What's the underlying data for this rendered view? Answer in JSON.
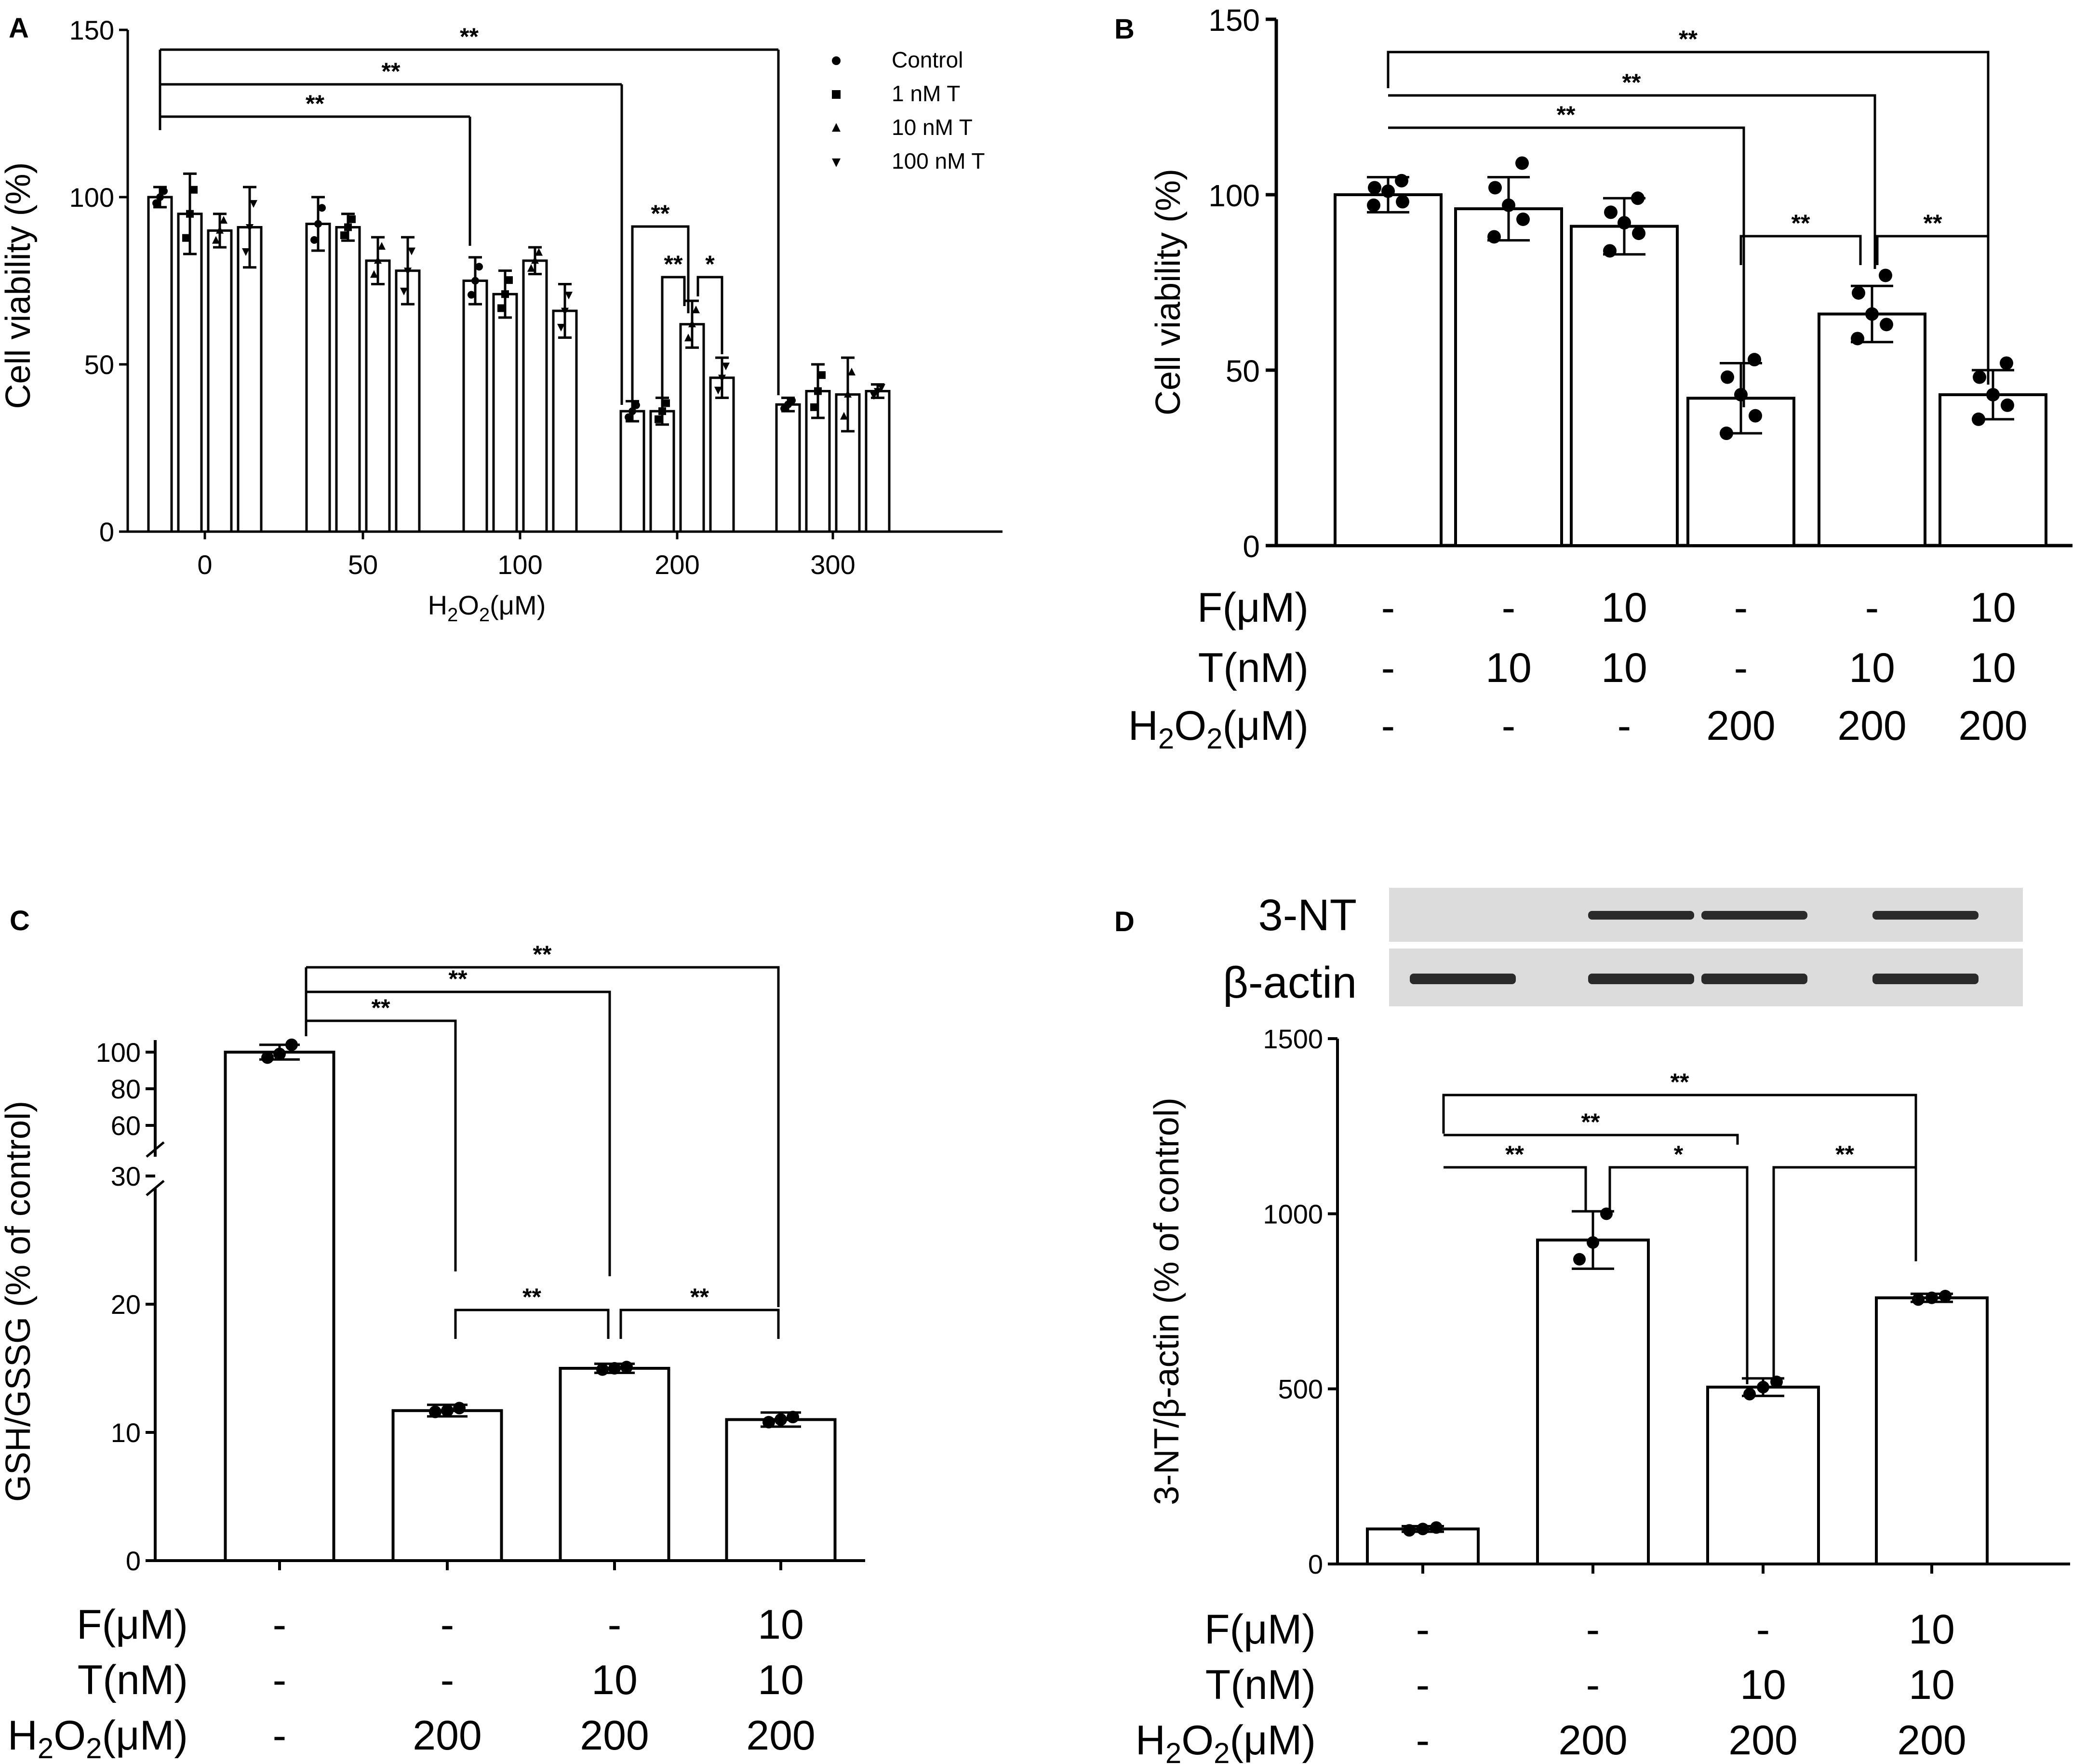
{
  "figure": {
    "panels": [
      "A",
      "B",
      "C",
      "D"
    ],
    "colors": {
      "ink": "#000000",
      "bar_fill": "#ffffff",
      "blot_bg": "#dcdcdc",
      "band": "#2a2a2a"
    }
  },
  "chart_data": [
    {
      "panel": "A",
      "type": "bar",
      "title": "",
      "ylabel": "Cell viability (%)",
      "xlabel_main": "H",
      "xlabel_sub": "2",
      "xlabel_tail": "O",
      "xlabel_sub2": "2",
      "xlabel_unit": "(μM)",
      "ylim": [
        0,
        150
      ],
      "yticks": [
        "0",
        "50",
        "100",
        "150"
      ],
      "categories": [
        "0",
        "50",
        "100",
        "200",
        "300"
      ],
      "series": [
        {
          "name": "Control",
          "marker": "circle",
          "values": [
            100,
            92,
            75,
            36,
            38
          ],
          "errors": [
            3,
            8,
            7,
            3,
            2
          ]
        },
        {
          "name": "1 nM T",
          "marker": "square",
          "values": [
            95,
            91,
            71,
            36,
            42
          ],
          "errors": [
            12,
            4,
            7,
            4,
            8
          ]
        },
        {
          "name": "10 nM T",
          "marker": "triangle-up",
          "values": [
            90,
            81,
            81,
            62,
            41
          ],
          "errors": [
            5,
            7,
            4,
            7,
            11
          ]
        },
        {
          "name": "100 nM T",
          "marker": "triangle-down",
          "values": [
            91,
            78,
            66,
            46,
            42
          ],
          "errors": [
            12,
            10,
            8,
            6,
            2
          ]
        }
      ],
      "significance": [
        {
          "label": "**",
          "from": "0/Control",
          "to": "100/Control"
        },
        {
          "label": "**",
          "from": "0/Control",
          "to": "200/Control"
        },
        {
          "label": "**",
          "from": "0/Control",
          "to": "300/Control"
        },
        {
          "label": "**",
          "from": "200/Control",
          "to": "200/10 nM T"
        },
        {
          "label": "**",
          "from": "200/1 nM T",
          "to": "200/10 nM T"
        },
        {
          "label": "*",
          "from": "200/10 nM T",
          "to": "200/100 nM T"
        }
      ],
      "legend_position": "top-right"
    },
    {
      "panel": "B",
      "type": "bar",
      "ylabel": "Cell viability (%)",
      "ylim": [
        0,
        150
      ],
      "yticks": [
        "0",
        "50",
        "100",
        "150"
      ],
      "values": [
        100,
        96,
        91,
        42,
        66,
        43
      ],
      "errors": [
        5,
        9,
        8,
        10,
        8,
        7
      ],
      "points": [
        [
          97,
          98,
          101,
          102,
          104
        ],
        [
          88,
          93,
          97,
          102,
          109
        ],
        [
          84,
          89,
          92,
          95,
          99
        ],
        [
          32,
          37,
          43,
          48,
          53
        ],
        [
          59,
          63,
          66,
          72,
          77
        ],
        [
          36,
          40,
          43,
          48,
          52
        ]
      ],
      "conditions": {
        "labels": [
          "F(μM)",
          "T(nM)",
          "H2O2(μM)"
        ],
        "F": [
          "-",
          "-",
          "10",
          "-",
          "-",
          "10"
        ],
        "T": [
          "-",
          "10",
          "10",
          "-",
          "10",
          "10"
        ],
        "H2O2": [
          "-",
          "-",
          "-",
          "200",
          "200",
          "200"
        ]
      },
      "significance": [
        {
          "label": "**",
          "from": 1,
          "to": 4
        },
        {
          "label": "**",
          "from": 1,
          "to": 5
        },
        {
          "label": "**",
          "from": 1,
          "to": 6
        },
        {
          "label": "**",
          "from": 4,
          "to": 5
        },
        {
          "label": "**",
          "from": 5,
          "to": 6
        }
      ]
    },
    {
      "panel": "C",
      "type": "bar",
      "ylabel": "GSH/GSSG  (% of control)",
      "axis_break": "30 to 60",
      "yticks_lower": [
        "0",
        "10",
        "20",
        "30"
      ],
      "yticks_upper": [
        "60",
        "80",
        "100"
      ],
      "values": [
        100,
        11.7,
        15,
        11
      ],
      "errors": [
        4,
        0.3,
        0.2,
        0.4
      ],
      "points": [
        [
          97,
          99,
          104
        ],
        [
          11.6,
          11.7,
          11.9
        ],
        [
          14.9,
          15,
          15.1
        ],
        [
          10.8,
          11,
          11.2
        ]
      ],
      "conditions": {
        "labels": [
          "F(μM)",
          "T(nM)",
          "H2O2(μM)"
        ],
        "F": [
          "-",
          "-",
          "-",
          "10"
        ],
        "T": [
          "-",
          "-",
          "10",
          "10"
        ],
        "H2O2": [
          "-",
          "200",
          "200",
          "200"
        ]
      },
      "significance": [
        {
          "label": "**",
          "from": 1,
          "to": 2
        },
        {
          "label": "**",
          "from": 1,
          "to": 3
        },
        {
          "label": "**",
          "from": 1,
          "to": 4
        },
        {
          "label": "**",
          "from": 2,
          "to": 3
        },
        {
          "label": "**",
          "from": 3,
          "to": 4
        }
      ]
    },
    {
      "panel": "D",
      "type": "bar",
      "ylabel": "3-NT/β-actin  (% of control)",
      "ylim": [
        0,
        1500
      ],
      "yticks": [
        "0",
        "500",
        "1000",
        "1500"
      ],
      "values": [
        100,
        925,
        505,
        760
      ],
      "errors": [
        8,
        82,
        25,
        6
      ],
      "points": [
        [
          96,
          100,
          104
        ],
        [
          870,
          918,
          1000
        ],
        [
          485,
          505,
          520
        ],
        [
          755,
          760,
          765
        ]
      ],
      "blot_labels": [
        "3-NT",
        "β-actin"
      ],
      "conditions": {
        "labels": [
          "F(μM)",
          "T(nM)",
          "H2O2(μM)"
        ],
        "F": [
          "-",
          "-",
          "-",
          "10"
        ],
        "T": [
          "-",
          "-",
          "10",
          "10"
        ],
        "H2O2": [
          "-",
          "200",
          "200",
          "200"
        ]
      },
      "significance": [
        {
          "label": "**",
          "from": 1,
          "to": 2
        },
        {
          "label": "**",
          "from": 1,
          "to": 3
        },
        {
          "label": "**",
          "from": 1,
          "to": 4
        },
        {
          "label": "*",
          "from": 2,
          "to": 3
        },
        {
          "label": "**",
          "from": 3,
          "to": 4
        }
      ]
    }
  ]
}
